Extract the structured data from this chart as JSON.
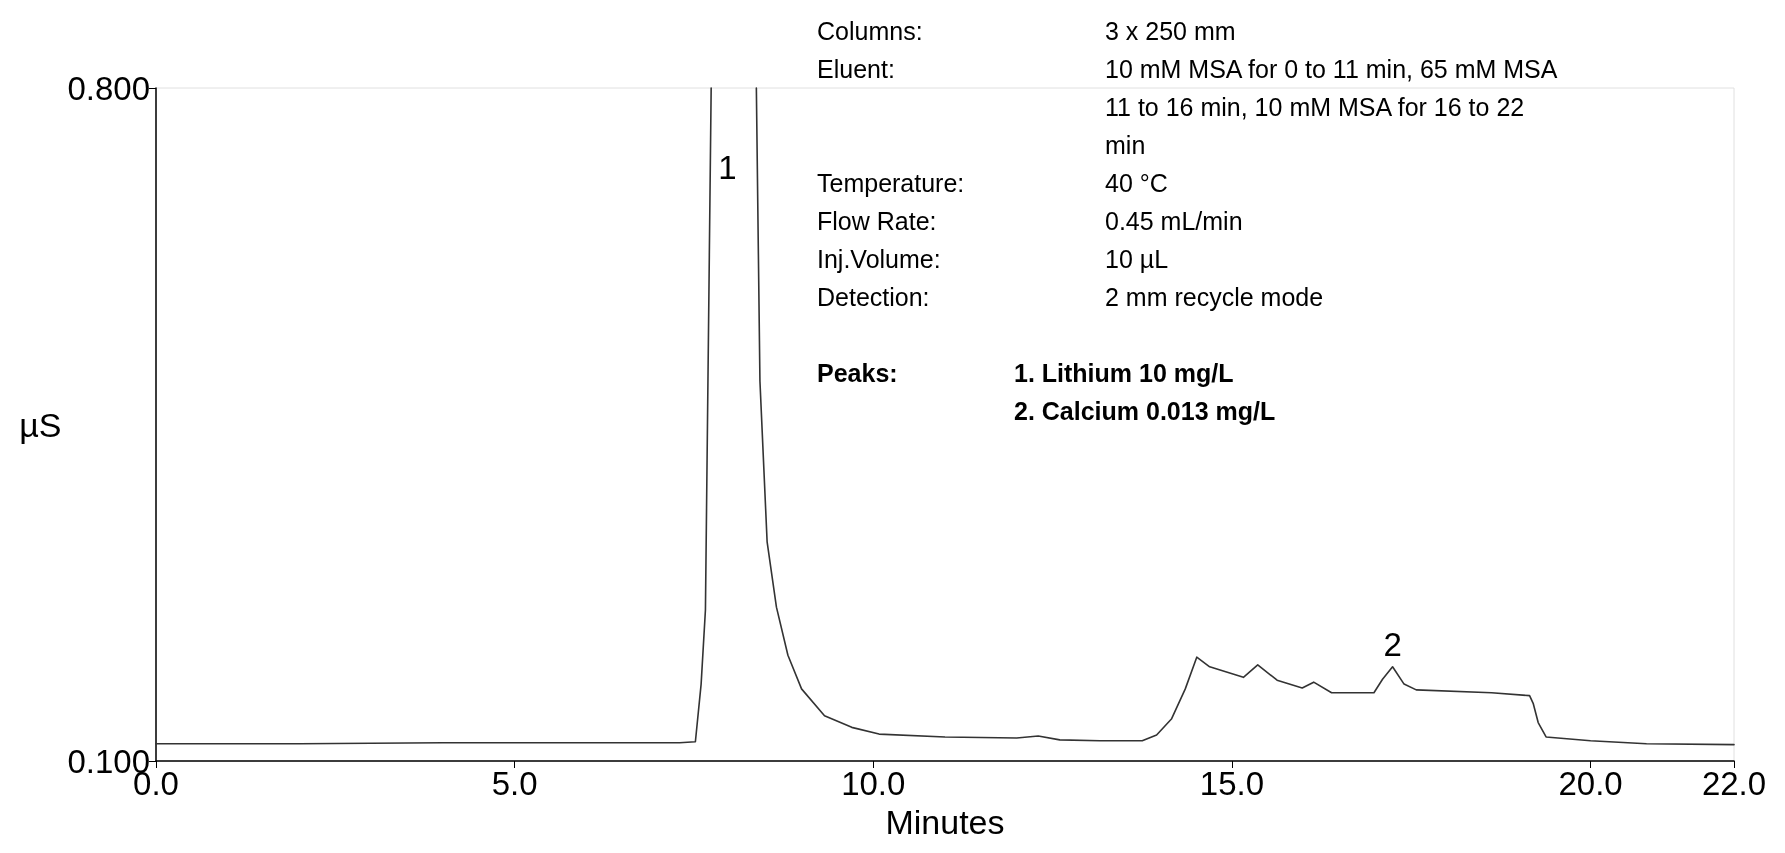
{
  "chart_data": {
    "type": "line",
    "xlabel": "Minutes",
    "ylabel": "µS",
    "xlim": [
      0,
      22
    ],
    "ylim": [
      0.1,
      0.8
    ],
    "xticks": [
      {
        "value": 0,
        "label": "0.0"
      },
      {
        "value": 5,
        "label": "5.0"
      },
      {
        "value": 10,
        "label": "10.0"
      },
      {
        "value": 15,
        "label": "15.0"
      },
      {
        "value": 20,
        "label": "20.0"
      },
      {
        "value": 22,
        "label": "22.0"
      }
    ],
    "yticks": [
      {
        "value": 0.1,
        "label": "0.100"
      },
      {
        "value": 0.8,
        "label": "0.800"
      }
    ],
    "grid": false,
    "marker": "none",
    "line_style": "solid",
    "series": [
      {
        "color": "#333333",
        "x": [
          0,
          2,
          4,
          6,
          7.3,
          7.52,
          7.6,
          7.66,
          7.74,
          8.0,
          8.37,
          8.42,
          8.52,
          8.65,
          8.81,
          9.0,
          9.32,
          9.7,
          10.08,
          11,
          12,
          12.3,
          12.6,
          13.16,
          13.75,
          13.95,
          14.16,
          14.35,
          14.51,
          14.69,
          15.16,
          15.36,
          15.63,
          15.98,
          16.14,
          16.39,
          16.98,
          17.1,
          17.24,
          17.4,
          17.57,
          18.62,
          19.15,
          19.2,
          19.27,
          19.38,
          20.0,
          20.78,
          22.0
        ],
        "values": [
          0.118,
          0.118,
          0.119,
          0.119,
          0.119,
          0.12,
          0.18,
          0.257,
          0.8,
          null,
          0.8,
          0.495,
          0.328,
          0.26,
          0.21,
          0.175,
          0.147,
          0.135,
          0.128,
          0.125,
          0.124,
          0.126,
          0.122,
          0.121,
          0.121,
          0.127,
          0.144,
          0.175,
          0.208,
          0.198,
          0.187,
          0.2,
          0.184,
          0.176,
          0.182,
          0.171,
          0.171,
          0.185,
          0.198,
          0.18,
          0.174,
          0.171,
          0.168,
          0.16,
          0.14,
          0.125,
          0.121,
          0.118,
          0.117
        ]
      }
    ],
    "annotations": [
      "Columns:\t3 x 250 mm",
      "Eluent:\t10 mM MSA for 0 to 11 min, 65 mM MSA 11 to 16 min, 10 mM MSA for 16 to  22 min",
      "Temperature:\t40 °C",
      "Flow Rate:\t0.45 mL/min",
      "Inj.Volume:\t10 µL",
      "Detection:\t2 mm recycle mode",
      "Peaks:\t1. Lithium 10 mg/L",
      "\t2. Calcium 0.013 mg/L",
      {
        "text": "1",
        "x": 7.74,
        "y": 0.8
      },
      {
        "text": "2",
        "x": 17.24,
        "y": 0.198
      }
    ]
  }
}
